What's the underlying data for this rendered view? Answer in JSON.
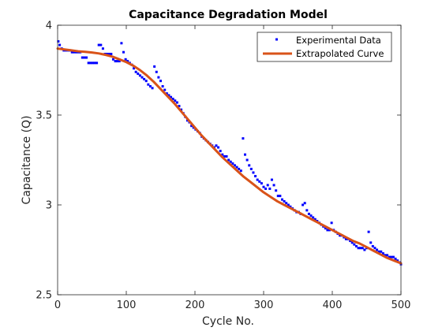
{
  "chart_data": {
    "type": "line",
    "title": "Capacitance Degradation Model",
    "xlabel": "Cycle No.",
    "ylabel": "Capacitance (Q)",
    "xlim": [
      0,
      500
    ],
    "ylim": [
      2.5,
      4
    ],
    "xticks": [
      0,
      100,
      200,
      300,
      400,
      500
    ],
    "yticks": [
      2.5,
      3,
      3.5,
      4
    ],
    "grid": false,
    "legend_position": "top-right",
    "colors": {
      "experimental": "#0000ff",
      "extrapolated": "#d95319",
      "axis": "#262626"
    },
    "series": [
      {
        "name": "Experimental Data",
        "style": "markers",
        "x": [
          1,
          3,
          6,
          9,
          12,
          15,
          18,
          21,
          24,
          27,
          30,
          33,
          36,
          39,
          42,
          45,
          48,
          51,
          54,
          57,
          60,
          63,
          66,
          69,
          72,
          75,
          78,
          81,
          84,
          87,
          90,
          93,
          96,
          99,
          102,
          105,
          108,
          111,
          114,
          117,
          120,
          123,
          126,
          129,
          132,
          135,
          138,
          141,
          144,
          147,
          150,
          153,
          156,
          159,
          162,
          165,
          168,
          171,
          174,
          177,
          180,
          183,
          186,
          189,
          192,
          195,
          198,
          201,
          204,
          207,
          210,
          213,
          216,
          219,
          222,
          225,
          228,
          231,
          234,
          237,
          240,
          243,
          246,
          249,
          252,
          255,
          258,
          261,
          264,
          267,
          270,
          273,
          276,
          279,
          282,
          285,
          288,
          291,
          294,
          297,
          300,
          303,
          306,
          309,
          312,
          315,
          318,
          321,
          324,
          327,
          330,
          333,
          336,
          339,
          342,
          345,
          348,
          351,
          354,
          357,
          360,
          363,
          366,
          369,
          372,
          375,
          378,
          381,
          384,
          387,
          390,
          393,
          396,
          399,
          402,
          405,
          408,
          411,
          414,
          417,
          420,
          423,
          426,
          429,
          432,
          435,
          438,
          441,
          444,
          447,
          450,
          453,
          456,
          459,
          462,
          465,
          468,
          471,
          474,
          477,
          480,
          483,
          486,
          489,
          492,
          495,
          498,
          500
        ],
        "y": [
          3.91,
          3.89,
          3.87,
          3.86,
          3.86,
          3.86,
          3.86,
          3.85,
          3.85,
          3.85,
          3.85,
          3.85,
          3.82,
          3.82,
          3.82,
          3.79,
          3.79,
          3.79,
          3.79,
          3.79,
          3.89,
          3.89,
          3.87,
          3.84,
          3.84,
          3.84,
          3.84,
          3.81,
          3.8,
          3.8,
          3.8,
          3.9,
          3.85,
          3.81,
          3.8,
          3.79,
          3.78,
          3.76,
          3.74,
          3.73,
          3.72,
          3.71,
          3.7,
          3.69,
          3.67,
          3.66,
          3.65,
          3.77,
          3.74,
          3.71,
          3.69,
          3.66,
          3.64,
          3.62,
          3.61,
          3.6,
          3.59,
          3.58,
          3.57,
          3.55,
          3.53,
          3.51,
          3.49,
          3.47,
          3.46,
          3.44,
          3.43,
          3.42,
          3.41,
          3.4,
          3.38,
          3.37,
          3.36,
          3.35,
          3.34,
          3.33,
          3.32,
          3.33,
          3.32,
          3.3,
          3.28,
          3.27,
          3.27,
          3.25,
          3.24,
          3.23,
          3.22,
          3.21,
          3.2,
          3.19,
          3.37,
          3.28,
          3.25,
          3.22,
          3.2,
          3.18,
          3.16,
          3.14,
          3.13,
          3.12,
          3.1,
          3.09,
          3.11,
          3.09,
          3.14,
          3.11,
          3.08,
          3.05,
          3.05,
          3.03,
          3.02,
          3.01,
          3.0,
          2.99,
          2.98,
          2.97,
          2.96,
          2.96,
          2.95,
          3.0,
          3.01,
          2.97,
          2.95,
          2.94,
          2.93,
          2.92,
          2.91,
          2.9,
          2.89,
          2.88,
          2.87,
          2.86,
          2.86,
          2.9,
          2.86,
          2.85,
          2.84,
          2.83,
          2.83,
          2.82,
          2.81,
          2.81,
          2.8,
          2.79,
          2.78,
          2.77,
          2.76,
          2.76,
          2.76,
          2.75,
          2.76,
          2.85,
          2.79,
          2.77,
          2.76,
          2.75,
          2.74,
          2.74,
          2.73,
          2.72,
          2.72,
          2.71,
          2.71,
          2.71,
          2.7,
          2.69,
          2.68,
          2.67
        ]
      },
      {
        "name": "Extrapolated Curve",
        "style": "line",
        "x": [
          0,
          10,
          20,
          30,
          40,
          50,
          60,
          70,
          80,
          90,
          100,
          110,
          120,
          130,
          140,
          150,
          160,
          170,
          180,
          190,
          200,
          210,
          220,
          230,
          240,
          250,
          260,
          270,
          280,
          290,
          300,
          310,
          320,
          330,
          340,
          350,
          360,
          370,
          380,
          390,
          400,
          410,
          420,
          430,
          440,
          450,
          460,
          470,
          480,
          490,
          500
        ],
        "y": [
          3.87,
          3.865,
          3.86,
          3.855,
          3.852,
          3.848,
          3.843,
          3.835,
          3.825,
          3.81,
          3.795,
          3.775,
          3.75,
          3.72,
          3.685,
          3.645,
          3.605,
          3.565,
          3.52,
          3.475,
          3.43,
          3.385,
          3.345,
          3.305,
          3.265,
          3.23,
          3.195,
          3.16,
          3.13,
          3.1,
          3.07,
          3.045,
          3.02,
          3.0,
          2.98,
          2.96,
          2.94,
          2.92,
          2.9,
          2.88,
          2.86,
          2.84,
          2.82,
          2.8,
          2.785,
          2.765,
          2.745,
          2.725,
          2.705,
          2.69,
          2.675
        ]
      }
    ]
  }
}
